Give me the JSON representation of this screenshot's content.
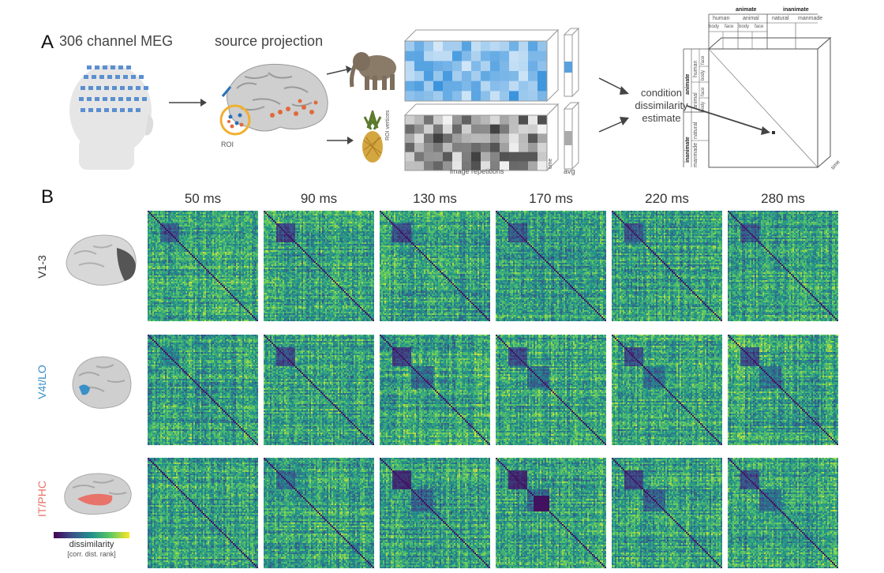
{
  "panel_a": {
    "letter": "A",
    "meg_title": "306 channel MEG",
    "source_title": "source projection",
    "roi_label": "ROI",
    "roi_vertices_label": "ROI vertices",
    "image_repetitions_label": "image repetitions",
    "time_label": "time",
    "avg_label": "avg",
    "estimate_line1": "condition",
    "estimate_line2": "dissimilarity",
    "estimate_line3": "estimate",
    "rdm_schematic": {
      "top_animate": "animate",
      "top_inanimate": "inanimate",
      "top_human": "human",
      "top_animal": "animal",
      "top_natural": "natural",
      "top_manmade": "manmade",
      "top_body1": "body",
      "top_face1": "face",
      "top_body2": "body",
      "top_face2": "face",
      "side_animate": "animate",
      "side_human": "human",
      "side_animal": "animal",
      "side_face": "face",
      "side_body": "body",
      "side_face2": "face",
      "side_body2": "body",
      "side_inanimate": "inanimate",
      "side_natural": "natural",
      "side_manmade": "manmade",
      "time_label": "time"
    }
  },
  "panel_b": {
    "letter": "B",
    "time_points": [
      "50 ms",
      "90 ms",
      "130 ms",
      "170 ms",
      "220 ms",
      "280 ms"
    ],
    "rows": [
      {
        "label": "V1-3",
        "color": "#444444"
      },
      {
        "label": "V4t/LO",
        "color": "#3a8fc8"
      },
      {
        "label": "IT/PHC",
        "color": "#e8736a"
      }
    ],
    "colorbar_title": "dissimilarity",
    "colorbar_subtitle": "[corr. dist. rank]"
  },
  "colors": {
    "viridis_low": "#440154",
    "viridis_mid": "#21918c",
    "viridis_high": "#fde725",
    "roi_ring": "#f0b030",
    "blue_matrix": "#2a7fc8"
  }
}
